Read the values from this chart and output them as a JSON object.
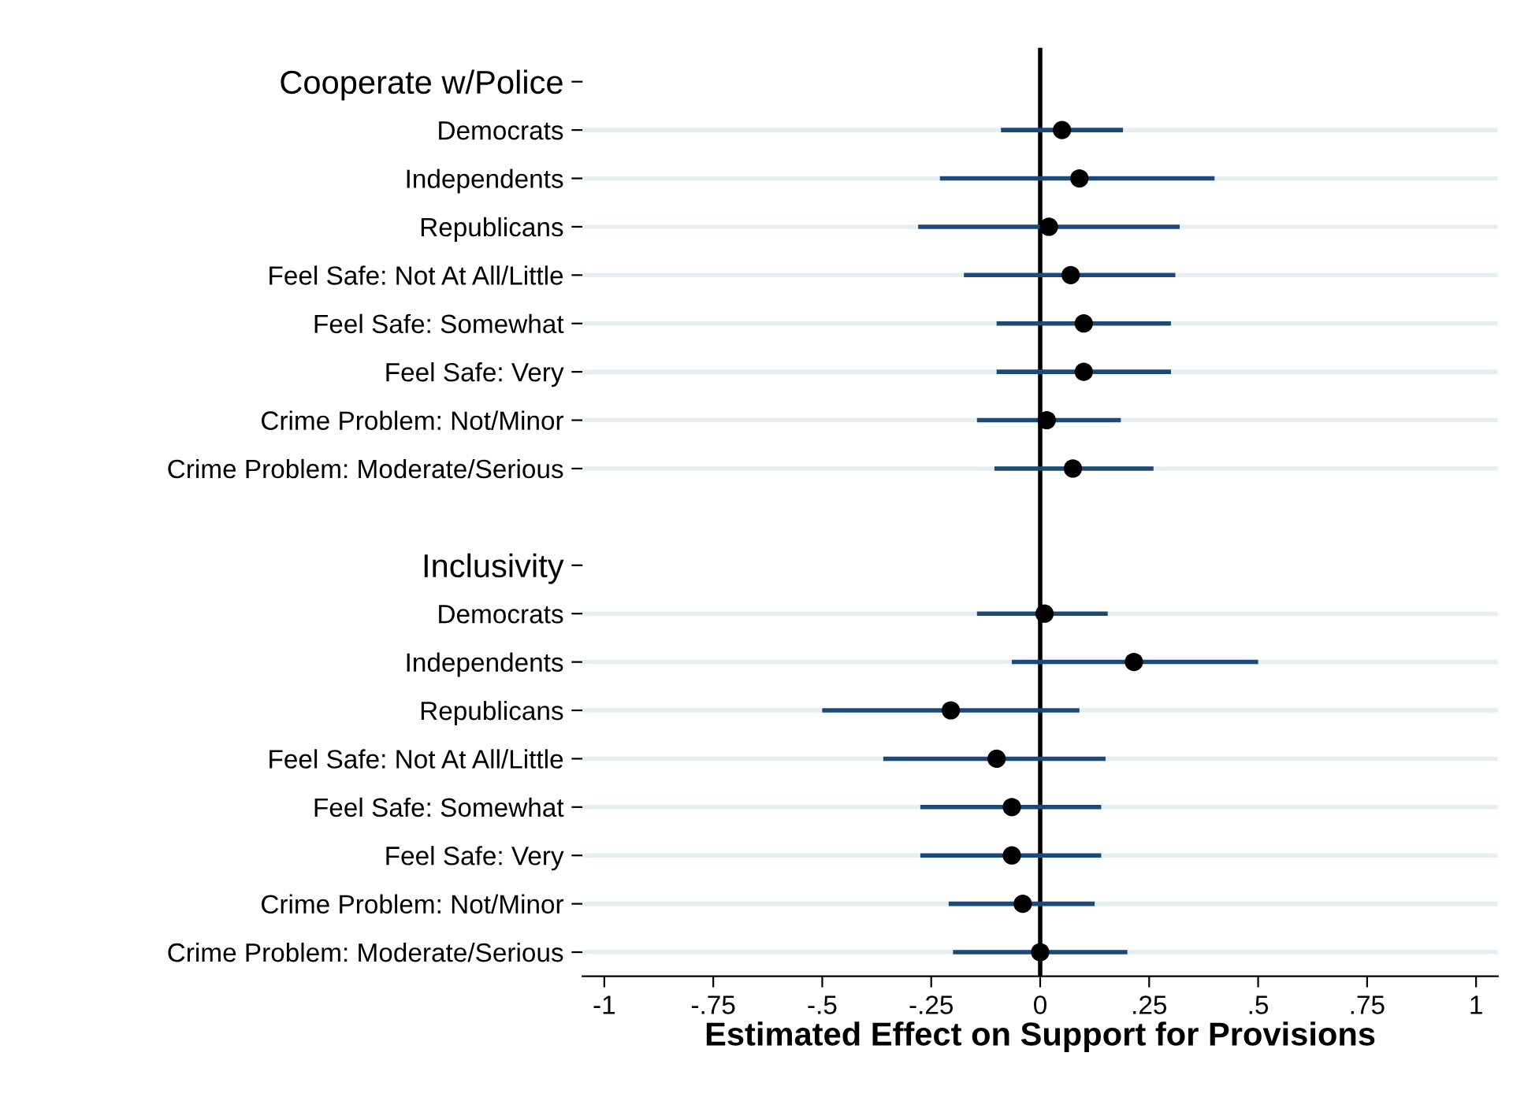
{
  "chart_data": {
    "type": "scatter",
    "orientation": "horizontal",
    "xlabel": "Estimated Effect on Support for Provisions",
    "categories": [
      "Cooperate w/Police",
      "Democrats",
      "Independents",
      "Republicans",
      "Feel Safe: Not At All/Little",
      "Feel Safe: Somewhat",
      "Feel Safe: Very",
      "Crime Problem: Not/Minor",
      "Crime Problem: Moderate/Serious",
      null,
      "Inclusivity",
      "Democrats",
      "Independents",
      "Republicans",
      "Feel Safe: Not At All/Little",
      "Feel Safe: Somewhat",
      "Feel Safe: Very",
      "Crime Problem: Not/Minor",
      "Crime Problem: Moderate/Serious"
    ],
    "series": [
      {
        "color": "#000000",
        "values": [
          null,
          0.05,
          0.09,
          0.02,
          0.07,
          0.1,
          0.1,
          0.015,
          0.075,
          null,
          null,
          0.01,
          0.215,
          -0.205,
          -0.1,
          -0.065,
          -0.065,
          -0.04,
          0.0
        ],
        "errors": [
          null,
          [
            -0.09,
            0.19
          ],
          [
            -0.23,
            0.4
          ],
          [
            -0.28,
            0.32
          ],
          [
            -0.175,
            0.31
          ],
          [
            -0.1,
            0.3
          ],
          [
            -0.1,
            0.3
          ],
          [
            -0.145,
            0.185
          ],
          [
            -0.105,
            0.26
          ],
          null,
          null,
          [
            -0.145,
            0.155
          ],
          [
            -0.065,
            0.5
          ],
          [
            -0.5,
            0.09
          ],
          [
            -0.36,
            0.15
          ],
          [
            -0.275,
            0.14
          ],
          [
            -0.275,
            0.14
          ],
          [
            -0.21,
            0.125
          ],
          [
            -0.2,
            0.2
          ]
        ]
      }
    ],
    "xlim": [
      -1.05,
      1.05
    ],
    "xticks": [
      {
        "value": -1,
        "label": "-1"
      },
      {
        "value": -0.75,
        "label": "-.75"
      },
      {
        "value": -0.5,
        "label": "-.5"
      },
      {
        "value": -0.25,
        "label": "-.25"
      },
      0,
      {
        "value": 0.25,
        "label": ".25"
      },
      {
        "value": 0.5,
        "label": ".5"
      },
      {
        "value": 0.75,
        "label": ".75"
      },
      1
    ],
    "ref_lines": [
      {
        "axis": "x",
        "value": 0,
        "color": "#000000"
      }
    ],
    "grid": "y",
    "marker": "circle"
  }
}
